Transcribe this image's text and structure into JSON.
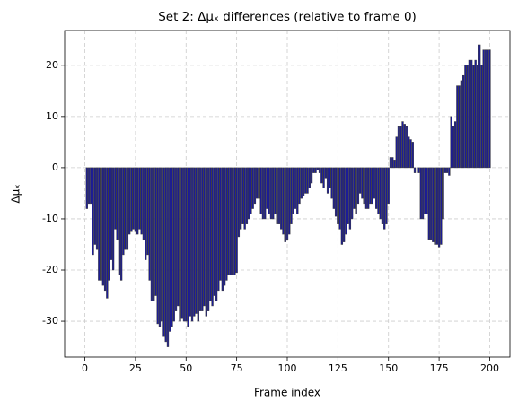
{
  "chart_data": {
    "type": "bar",
    "title": "Set 2: Δμₓ differences (relative to frame 0)",
    "x_label": "Frame index",
    "y_label": "Δμₓ",
    "color": "#1c1c96",
    "edge_color": "#3a3a3a",
    "grid": true,
    "xlim": [
      -10,
      210
    ],
    "ylim": [
      -37,
      26.8
    ],
    "xticks": [
      0,
      25,
      50,
      75,
      100,
      125,
      150,
      175,
      200
    ],
    "yticks": [
      -30,
      -20,
      -10,
      0,
      10,
      20
    ],
    "x": [
      0,
      1,
      2,
      3,
      4,
      5,
      6,
      7,
      8,
      9,
      10,
      11,
      12,
      13,
      14,
      15,
      16,
      17,
      18,
      19,
      20,
      21,
      22,
      23,
      24,
      25,
      26,
      27,
      28,
      29,
      30,
      31,
      32,
      33,
      34,
      35,
      36,
      37,
      38,
      39,
      40,
      41,
      42,
      43,
      44,
      45,
      46,
      47,
      48,
      49,
      50,
      51,
      52,
      53,
      54,
      55,
      56,
      57,
      58,
      59,
      60,
      61,
      62,
      63,
      64,
      65,
      66,
      67,
      68,
      69,
      70,
      71,
      72,
      73,
      74,
      75,
      76,
      77,
      78,
      79,
      80,
      81,
      82,
      83,
      84,
      85,
      86,
      87,
      88,
      89,
      90,
      91,
      92,
      93,
      94,
      95,
      96,
      97,
      98,
      99,
      100,
      101,
      102,
      103,
      104,
      105,
      106,
      107,
      108,
      109,
      110,
      111,
      112,
      113,
      114,
      115,
      116,
      117,
      118,
      119,
      120,
      121,
      122,
      123,
      124,
      125,
      126,
      127,
      128,
      129,
      130,
      131,
      132,
      133,
      134,
      135,
      136,
      137,
      138,
      139,
      140,
      141,
      142,
      143,
      144,
      145,
      146,
      147,
      148,
      149,
      150,
      151,
      152,
      153,
      154,
      155,
      156,
      157,
      158,
      159,
      160,
      161,
      162,
      163,
      164,
      165,
      166,
      167,
      168,
      169,
      170,
      171,
      172,
      173,
      174,
      175,
      176,
      177,
      178,
      179,
      180,
      181,
      182,
      183,
      184,
      185,
      186,
      187,
      188,
      189,
      190,
      191,
      192,
      193,
      194,
      195,
      196,
      197,
      198,
      199,
      200
    ],
    "values": [
      0,
      -8,
      -7,
      -7,
      -17,
      -15,
      -16,
      -22,
      -22,
      -23,
      -24,
      -25.5,
      -22,
      -18,
      -20,
      -12,
      -14,
      -21,
      -22,
      -17,
      -16,
      -16,
      -13,
      -12.5,
      -12,
      -12.5,
      -13,
      -12,
      -13,
      -14,
      -18,
      -17,
      -22,
      -26,
      -26,
      -25,
      -30.5,
      -31,
      -30,
      -33,
      -34,
      -35,
      -32,
      -31,
      -30,
      -28,
      -27,
      -30,
      -29.5,
      -30,
      -30,
      -31,
      -29,
      -30,
      -29,
      -28.5,
      -30,
      -28,
      -28,
      -27,
      -29,
      -28,
      -26,
      -27,
      -25,
      -26,
      -24,
      -22,
      -24,
      -23,
      -22,
      -21,
      -21,
      -21,
      -21,
      -20.5,
      -13.5,
      -12,
      -11,
      -12,
      -11,
      -10,
      -9,
      -8,
      -7,
      -6,
      -6,
      -9,
      -10,
      -10,
      -8,
      -9,
      -10,
      -10,
      -9,
      -11,
      -11,
      -12,
      -13,
      -14.5,
      -14,
      -13,
      -11,
      -9,
      -8,
      -9,
      -7,
      -6,
      -5.5,
      -5,
      -5,
      -4,
      -3,
      -1,
      -1,
      -0.5,
      -1,
      -3,
      -4,
      -2,
      -5,
      -4,
      -6,
      -8,
      -9.5,
      -11,
      -12,
      -15,
      -14.5,
      -13,
      -11,
      -12,
      -10,
      -8,
      -9,
      -7,
      -5,
      -6,
      -7,
      -8,
      -8,
      -7,
      -7,
      -6,
      -8,
      -9,
      -10,
      -11,
      -12,
      -11,
      -7,
      2,
      2,
      1.5,
      6,
      8,
      8,
      9,
      8.5,
      8,
      6,
      5.5,
      5,
      -1,
      0,
      -1,
      -10,
      -10,
      -9,
      -9,
      -14,
      -14,
      -14.5,
      -15,
      -15,
      -15.5,
      -15,
      -10,
      -1,
      -1,
      -1.5,
      10,
      8,
      9,
      16,
      16,
      17,
      18,
      20,
      20,
      21,
      21,
      20,
      21,
      20,
      24,
      20,
      23,
      23,
      23,
      23
    ]
  }
}
